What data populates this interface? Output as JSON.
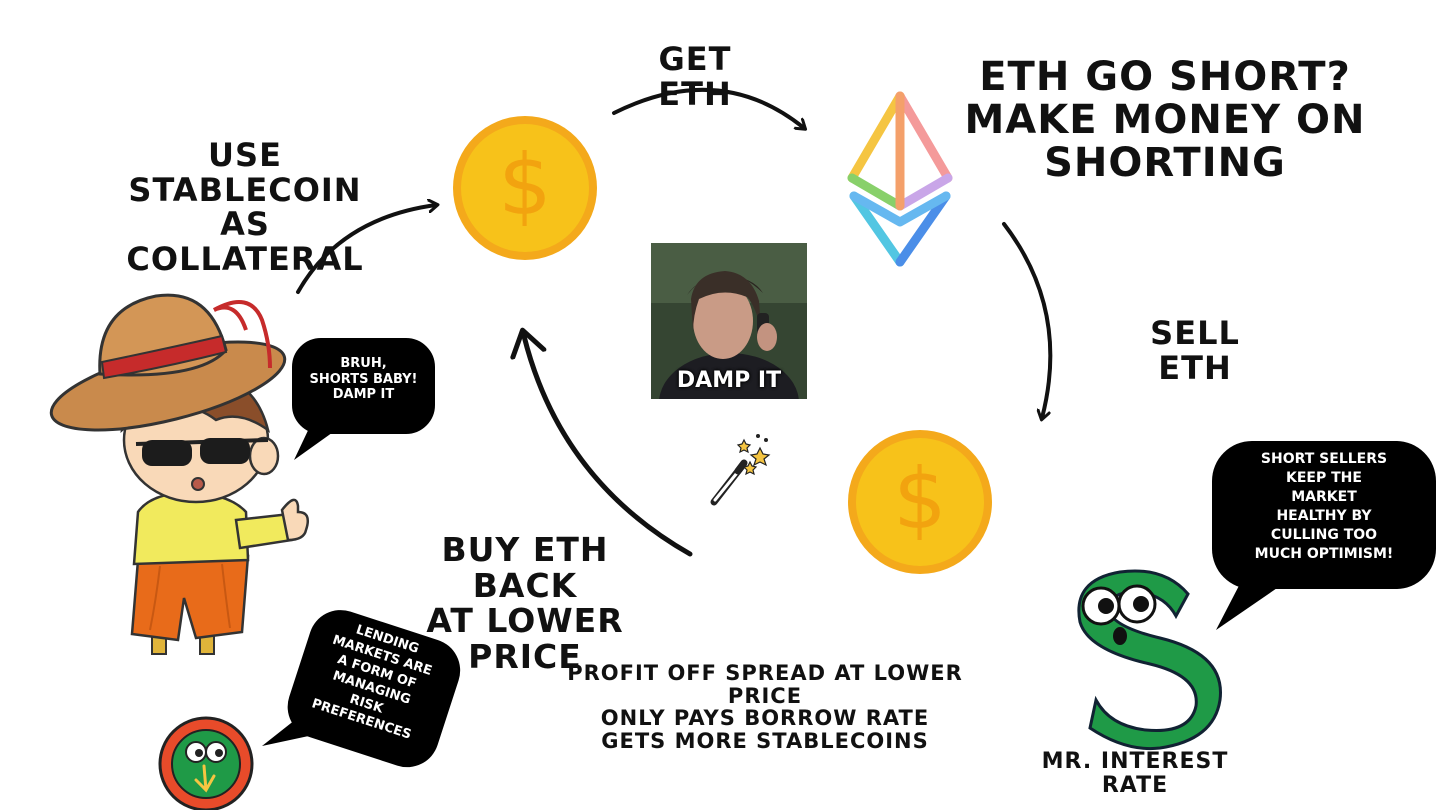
{
  "steps": {
    "get_eth": "GET ETH",
    "collateral_line1": "USE STABLECOIN",
    "collateral_line2": "AS COLLATERAL",
    "sell_eth": "SELL ETH",
    "buy_back_line1": "BUY ETH BACK",
    "buy_back_line2": "AT LOWER PRICE"
  },
  "headline": {
    "line1": "ETH GO SHORT?",
    "line2": "MAKE MONEY ON SHORTING"
  },
  "profit": {
    "line1": "PROFIT OFF SPREAD AT LOWER PRICE",
    "line2": "ONLY PAYS BORROW RATE",
    "line3": "GETS MORE STABLECOINS"
  },
  "meme": {
    "caption": "DAMP IT"
  },
  "bubbles": {
    "cowboy": {
      "line1": "BRUH,",
      "line2": "SHORTS BABY!",
      "line3": "DAMP IT"
    },
    "interest": {
      "line1": "SHORT SELLERS",
      "line2": "KEEP THE",
      "line3": "MARKET",
      "line4": "HEALTHY BY",
      "line5": "CULLING TOO",
      "line6": "MUCH OPTIMISM!"
    },
    "lending": {
      "line1": "LENDING",
      "line2": "MARKETS ARE",
      "line3": "A FORM OF",
      "line4": "MANAGING",
      "line5": "RISK",
      "line6": "PREFERENCES"
    }
  },
  "characters": {
    "interest_rate_name": "MR. INTEREST RATE"
  },
  "icons": {
    "coin_top": "dollar-coin-icon",
    "coin_bottom": "dollar-coin-icon",
    "eth": "ethereum-logo-icon",
    "wand": "magic-wand-icon"
  },
  "colors": {
    "coin_fill": "#f7c21a",
    "coin_rim": "#f4a91b",
    "coin_symbol": "#f2a30f",
    "bubble_fill": "#000000",
    "dollar_character": "#1f9a47"
  }
}
